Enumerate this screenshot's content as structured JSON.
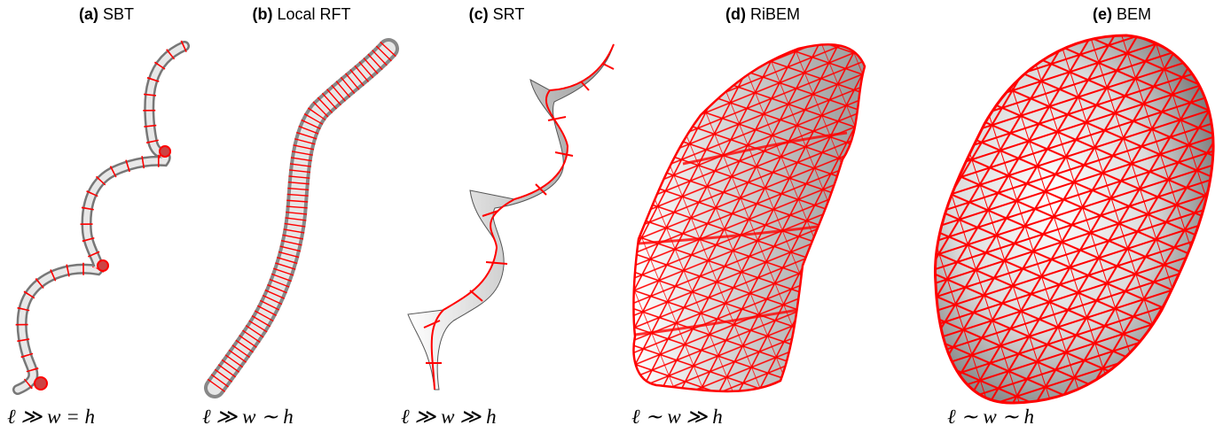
{
  "panels": [
    {
      "letter": "(a)",
      "name": "SBT",
      "formula": "ℓ ≫ w = h"
    },
    {
      "letter": "(b)",
      "name": "Local RFT",
      "formula": "ℓ ≫ w ∼ h"
    },
    {
      "letter": "(c)",
      "name": "SRT",
      "formula": "ℓ ≫ w ≫ h"
    },
    {
      "letter": "(d)",
      "name": "RiBEM",
      "formula": "ℓ ∼ w ≫ h"
    },
    {
      "letter": "(e)",
      "name": "BEM",
      "formula": "ℓ ∼ w ∼ h"
    }
  ],
  "colors": {
    "mesh": "#ff0000",
    "surface_light": "#ffffff",
    "surface_dark": "#8a8a8a",
    "text": "#000000"
  }
}
